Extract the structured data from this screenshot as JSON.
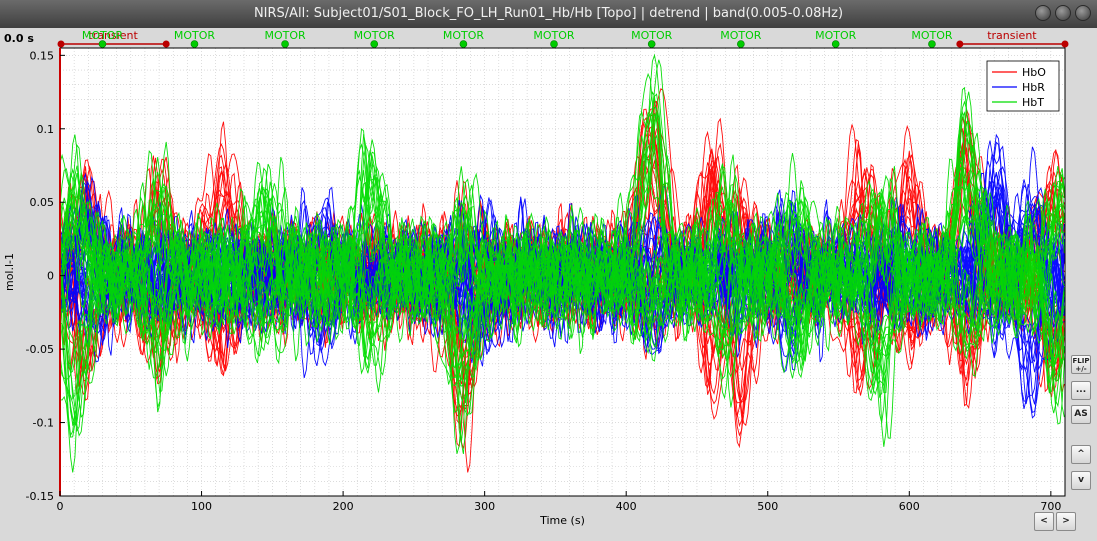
{
  "window": {
    "title": "NIRS/All: Subject01/S01_Block_FO_LH_Run01_Hb/Hb [Topo] | detrend | band(0.005-0.08Hz)"
  },
  "time_cursor": "0.0 s",
  "buttons": {
    "flip_label": "FLIP +/-",
    "more_label": "...",
    "autoscale_label": "AS",
    "up_label": "^",
    "down_label": "v",
    "prev_label": "<",
    "next_label": ">"
  },
  "colors": {
    "HbO": "#ff0000",
    "HbR": "#0000ff",
    "HbT": "#00dd00",
    "event_motor": "#00cc00",
    "event_transient": "#bb0000"
  },
  "chart_data": {
    "type": "line",
    "xlabel": "Time (s)",
    "ylabel": "mol.l-1",
    "xlim": [
      0,
      710
    ],
    "ylim": [
      -0.15,
      0.155
    ],
    "xticks": [
      0,
      100,
      200,
      300,
      400,
      500,
      600,
      700
    ],
    "yticks": [
      -0.15,
      -0.1,
      -0.05,
      0,
      0.05,
      0.1,
      0.15
    ],
    "ytick_labels": [
      "-0.15",
      "-0.1",
      "-0.05",
      "0",
      "0.05",
      "0.1",
      "0.15"
    ],
    "grid": true,
    "legend": {
      "placement": "top-right",
      "entries": [
        "HbO",
        "HbR",
        "HbT"
      ]
    },
    "events": [
      {
        "label": "transient",
        "type": "extended",
        "start": 0,
        "end": 75
      },
      {
        "label": "MOTOR",
        "t": 30
      },
      {
        "label": "MOTOR",
        "t": 95
      },
      {
        "label": "MOTOR",
        "t": 159
      },
      {
        "label": "MOTOR",
        "t": 222
      },
      {
        "label": "MOTOR",
        "t": 285
      },
      {
        "label": "MOTOR",
        "t": 349
      },
      {
        "label": "MOTOR",
        "t": 418
      },
      {
        "label": "MOTOR",
        "t": 481
      },
      {
        "label": "MOTOR",
        "t": 548
      },
      {
        "label": "MOTOR",
        "t": 616
      },
      {
        "label": "transient",
        "type": "extended",
        "start": 635,
        "end": 710
      }
    ],
    "series": [
      {
        "name": "HbO",
        "channels": 30,
        "peaks": [
          [
            17,
            0.07,
            -0.07
          ],
          [
            70,
            0.065,
            -0.06
          ],
          [
            115,
            0.09,
            -0.06
          ],
          [
            285,
            0.03,
            -0.11
          ],
          [
            418,
            0.13,
            -0.02
          ],
          [
            460,
            0.09,
            -0.07
          ],
          [
            480,
            0.04,
            -0.11
          ],
          [
            565,
            0.085,
            -0.07
          ],
          [
            600,
            0.085,
            -0.05
          ],
          [
            640,
            0.11,
            -0.06
          ],
          [
            700,
            0.08,
            -0.07
          ]
        ]
      },
      {
        "name": "HbR",
        "channels": 30,
        "peaks": [
          [
            20,
            0.05,
            -0.03
          ],
          [
            185,
            0.04,
            -0.04
          ],
          [
            300,
            0.035,
            -0.04
          ],
          [
            420,
            0.03,
            -0.04
          ],
          [
            515,
            0.035,
            -0.05
          ],
          [
            660,
            0.08,
            -0.04
          ],
          [
            685,
            0.06,
            -0.105
          ]
        ]
      },
      {
        "name": "HbT",
        "channels": 30,
        "peaks": [
          [
            10,
            0.07,
            -0.125
          ],
          [
            70,
            0.065,
            -0.06
          ],
          [
            145,
            0.06,
            -0.05
          ],
          [
            220,
            0.085,
            -0.06
          ],
          [
            285,
            0.04,
            -0.1
          ],
          [
            418,
            0.145,
            -0.03
          ],
          [
            470,
            0.05,
            -0.06
          ],
          [
            520,
            0.06,
            -0.05
          ],
          [
            580,
            0.06,
            -0.1
          ],
          [
            640,
            0.115,
            -0.05
          ],
          [
            705,
            0.06,
            -0.09
          ]
        ]
      }
    ]
  }
}
